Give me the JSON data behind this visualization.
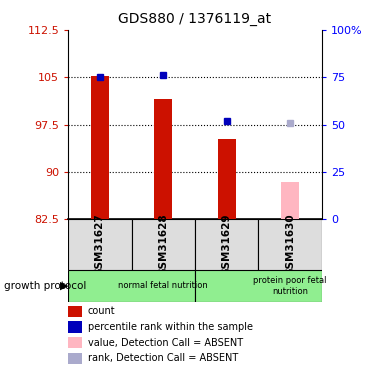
{
  "title": "GDS880 / 1376119_at",
  "samples": [
    "GSM31627",
    "GSM31628",
    "GSM31629",
    "GSM31630"
  ],
  "red_bar_values": [
    105.2,
    101.5,
    95.2,
    null
  ],
  "pink_bar_values": [
    null,
    null,
    null,
    88.5
  ],
  "blue_square_pct": [
    75.0,
    76.0,
    52.0,
    null
  ],
  "gray_square_pct": [
    null,
    null,
    null,
    51.0
  ],
  "ylim_left": [
    82.5,
    112.5
  ],
  "ylim_right": [
    0,
    100
  ],
  "yticks_left": [
    82.5,
    90.0,
    97.5,
    105.0,
    112.5
  ],
  "ytick_labels_left": [
    "82.5",
    "90",
    "97.5",
    "105",
    "112.5"
  ],
  "yticks_right": [
    0,
    25,
    50,
    75,
    100
  ],
  "ytick_labels_right": [
    "0",
    "25",
    "50",
    "75",
    "100%"
  ],
  "group_labels": [
    "normal fetal nutrition",
    "protein poor fetal\nnutrition"
  ],
  "group_ranges": [
    [
      0,
      2
    ],
    [
      2,
      4
    ]
  ],
  "group_color": "#90EE90",
  "bar_bottom": 82.5,
  "xlabel_label": "growth protocol",
  "red_color": "#CC1100",
  "pink_color": "#FFB6C1",
  "blue_color": "#0000BB",
  "gray_color": "#AAAACC",
  "legend_items": [
    {
      "label": "count",
      "color": "#CC1100"
    },
    {
      "label": "percentile rank within the sample",
      "color": "#0000BB"
    },
    {
      "label": "value, Detection Call = ABSENT",
      "color": "#FFB6C1"
    },
    {
      "label": "rank, Detection Call = ABSENT",
      "color": "#AAAACC"
    }
  ]
}
